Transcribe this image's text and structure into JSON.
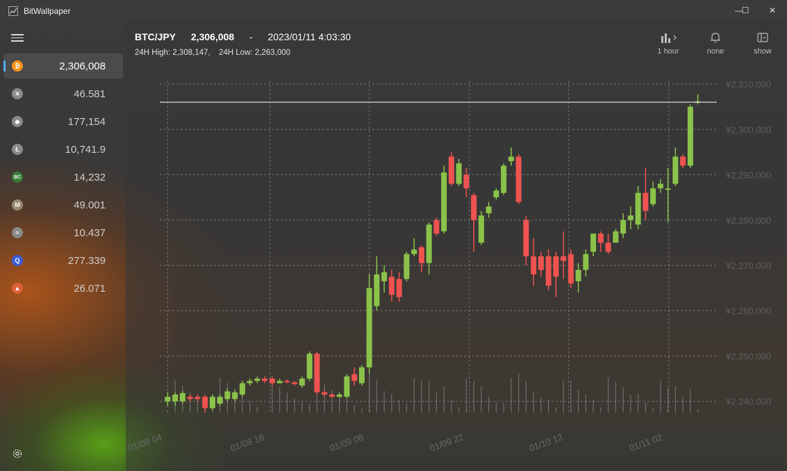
{
  "app": {
    "title": "BitWallpaper"
  },
  "window": {
    "minimize_glyph": "—",
    "maximize_glyph": "☐",
    "close_glyph": "✕"
  },
  "sidebar": {
    "coins": [
      {
        "icon": "bitcoin-icon",
        "glyph": "₿",
        "color": "#f7931a",
        "value": "2,306,008",
        "selected": true
      },
      {
        "icon": "xrp-icon",
        "glyph": "✕",
        "color": "#8a8a8a",
        "value": "46.581"
      },
      {
        "icon": "ethereum-icon",
        "glyph": "◆",
        "color": "#8a8a8a",
        "value": "177,154"
      },
      {
        "icon": "litecoin-icon",
        "glyph": "Ł",
        "color": "#8a8a8a",
        "value": "10,741.9"
      },
      {
        "icon": "bitcoin-cash-icon",
        "glyph": "BC",
        "color": "#3a7d3a",
        "value": "14,232"
      },
      {
        "icon": "monacoin-icon",
        "glyph": "M",
        "color": "#9a8a70",
        "value": "49.001"
      },
      {
        "icon": "stellar-icon",
        "glyph": "≈",
        "color": "#8a8a8a",
        "value": "10.437"
      },
      {
        "icon": "qtum-icon",
        "glyph": "Q",
        "color": "#3b5bd8",
        "value": "277.339"
      },
      {
        "icon": "bat-icon",
        "glyph": "▲",
        "color": "#e0603a",
        "value": "26.071"
      }
    ]
  },
  "header": {
    "pair": "BTC/JPY",
    "price": "2,306,008",
    "sep": "-",
    "datetime": "2023/01/11 4:03:30",
    "high_label": "24H High:",
    "high_value": "2,308,147,",
    "low_label": "24H Low:",
    "low_value": "2,263,000"
  },
  "toolbar": {
    "interval_label": "1 hour",
    "alert_label": "none",
    "depth_label": "show"
  },
  "chart_data": {
    "type": "candlestick",
    "y_tick_labels": [
      "¥2,310,000",
      "¥2,300,000",
      "¥2,290,000",
      "¥2,280,000",
      "¥2,270,000",
      "¥2,260,000",
      "¥2,250,000",
      "¥2,240,000"
    ],
    "y_ticks": [
      2310000,
      2300000,
      2290000,
      2280000,
      2270000,
      2260000,
      2250000,
      2240000
    ],
    "ylim": [
      2237500,
      2312000
    ],
    "x_tick_labels": [
      "01/08 04",
      "01/08 18",
      "01/09 08",
      "01/09 22",
      "01/10 12",
      "01/11 02"
    ],
    "current_price_line": 2306008,
    "grid": true,
    "up_color": "#8bc34a",
    "down_color": "#ef5350",
    "candles": [
      [
        2240000,
        2241000,
        2239000,
        2242000
      ],
      [
        2240000,
        2241500,
        2239000,
        2242000
      ],
      [
        2240000,
        2241800,
        2239500,
        2242200
      ],
      [
        2241000,
        2240500,
        2240000,
        2241500
      ],
      [
        2241000,
        2240500,
        2240000,
        2241500
      ],
      [
        2241000,
        2238500,
        2237500,
        2241500
      ],
      [
        2238500,
        2241000,
        2238000,
        2241500
      ],
      [
        2239500,
        2241000,
        2239000,
        2241500
      ],
      [
        2240500,
        2242200,
        2240000,
        2242800
      ],
      [
        2240500,
        2242000,
        2240000,
        2242500
      ],
      [
        2241500,
        2244000,
        2241000,
        2244500
      ],
      [
        2244000,
        2244500,
        2243500,
        2245000
      ],
      [
        2244500,
        2245000,
        2244000,
        2245500
      ],
      [
        2245000,
        2244500,
        2244000,
        2245500
      ],
      [
        2245000,
        2244000,
        2243500,
        2245500
      ],
      [
        2244000,
        2244500,
        2244000,
        2245000
      ],
      [
        2244500,
        2244200,
        2244000,
        2244800
      ],
      [
        2244200,
        2243800,
        2243500,
        2244500
      ],
      [
        2243500,
        2245000,
        2243000,
        2245500
      ],
      [
        2245000,
        2250500,
        2244500,
        2251000
      ],
      [
        2250500,
        2242000,
        2241500,
        2251000
      ],
      [
        2242000,
        2241500,
        2241000,
        2242500
      ],
      [
        2241500,
        2241000,
        2240800,
        2241800
      ],
      [
        2241000,
        2241500,
        2240800,
        2242000
      ],
      [
        2241000,
        2245500,
        2240800,
        2246000
      ],
      [
        2246000,
        2244500,
        2243500,
        2247500
      ],
      [
        2244000,
        2247500,
        2243500,
        2248000
      ],
      [
        2247500,
        2265000,
        2246000,
        2268000
      ],
      [
        2261000,
        2268000,
        2260000,
        2272000
      ],
      [
        2266500,
        2268500,
        2264000,
        2270000
      ],
      [
        2267500,
        2263500,
        2262000,
        2269000
      ],
      [
        2267000,
        2263000,
        2262000,
        2268500
      ],
      [
        2267000,
        2272500,
        2266500,
        2273000
      ],
      [
        2272500,
        2273500,
        2272000,
        2276000
      ],
      [
        2274000,
        2270500,
        2268500,
        2274500
      ],
      [
        2270500,
        2279000,
        2268000,
        2279500
      ],
      [
        2280000,
        2277000,
        2276500,
        2280500
      ],
      [
        2277500,
        2290500,
        2277000,
        2292000
      ],
      [
        2294000,
        2288000,
        2287500,
        2295000
      ],
      [
        2288000,
        2292500,
        2287500,
        2293500
      ],
      [
        2290000,
        2287000,
        2285000,
        2291500
      ],
      [
        2285500,
        2280000,
        2273000,
        2286000
      ],
      [
        2275000,
        2281000,
        2274500,
        2282000
      ],
      [
        2281500,
        2283000,
        2280500,
        2284000
      ],
      [
        2285000,
        2286500,
        2284500,
        2287000
      ],
      [
        2286000,
        2292000,
        2285500,
        2292500
      ],
      [
        2293000,
        2294000,
        2292000,
        2296000
      ],
      [
        2294000,
        2284000,
        2283500,
        2294500
      ],
      [
        2280000,
        2272000,
        2270000,
        2281000
      ],
      [
        2272000,
        2268000,
        2265500,
        2276000
      ],
      [
        2272000,
        2269000,
        2267500,
        2273000
      ],
      [
        2272000,
        2265500,
        2264500,
        2273500
      ],
      [
        2272000,
        2267500,
        2263000,
        2273000
      ],
      [
        2272000,
        2271000,
        2267000,
        2277500
      ],
      [
        2272500,
        2266000,
        2265000,
        2273500
      ],
      [
        2266500,
        2269000,
        2264000,
        2270500
      ],
      [
        2269000,
        2272500,
        2267500,
        2273500
      ],
      [
        2273000,
        2277000,
        2272000,
        2277000
      ],
      [
        2277000,
        2275000,
        2273000,
        2277500
      ],
      [
        2275000,
        2273000,
        2272500,
        2277000
      ],
      [
        2275000,
        2277500,
        2275000,
        2278000
      ],
      [
        2277000,
        2280000,
        2276000,
        2281500
      ],
      [
        2280000,
        2281000,
        2278000,
        2283000
      ],
      [
        2279000,
        2286000,
        2278000,
        2287500
      ],
      [
        2286000,
        2282000,
        2280000,
        2291500
      ],
      [
        2283500,
        2287000,
        2283000,
        2288500
      ],
      [
        2287000,
        2288000,
        2286000,
        2289000
      ],
      [
        2287000,
        2287000,
        2279500,
        2291500
      ],
      [
        2288000,
        2294000,
        2287500,
        2296000
      ],
      [
        2294000,
        2292000,
        2291500,
        2294500
      ],
      [
        2292000,
        2305000,
        2291500,
        2305500
      ],
      [
        2306000,
        2306200,
        2305500,
        2307800
      ]
    ]
  }
}
